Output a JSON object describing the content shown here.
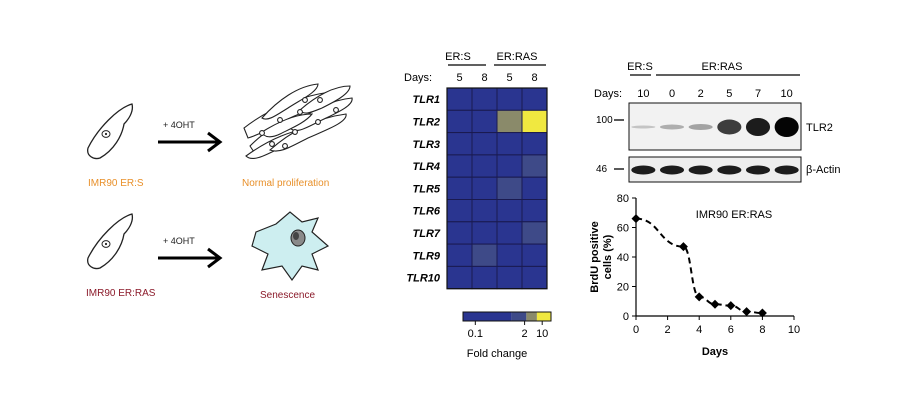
{
  "panel_a": {
    "arrow_label": "+ 4OHT",
    "cell_labels": [
      "IMR90 ER:S",
      "Normal proliferation",
      "IMR90 ER:RAS",
      "Senescence"
    ],
    "colors": {
      "ers_label": "#e8902a",
      "ras_label": "#8b1a2a",
      "senescent_fill": "#cdeef0"
    }
  },
  "heatmap": {
    "group_labels": [
      "ER:S",
      "ER:RAS"
    ],
    "days_label": "Days:",
    "days": [
      "5",
      "8",
      "5",
      "8"
    ],
    "genes": [
      "TLR1",
      "TLR2",
      "TLR3",
      "TLR4",
      "TLR5",
      "TLR6",
      "TLR7",
      "TLR9",
      "TLR10"
    ],
    "fold_change": [
      [
        0.1,
        0.1,
        0.1,
        0.1
      ],
      [
        0.1,
        0.1,
        2,
        10
      ],
      [
        0.1,
        0.1,
        0.1,
        0.1
      ],
      [
        0.1,
        0.1,
        0.1,
        0.5
      ],
      [
        0.1,
        0.1,
        0.5,
        0.1
      ],
      [
        0.1,
        0.1,
        0.1,
        0.1
      ],
      [
        0.1,
        0.1,
        0.1,
        0.5
      ],
      [
        0.1,
        0.5,
        0.1,
        0.1
      ],
      [
        0.1,
        0.1,
        0.1,
        0.1
      ]
    ],
    "scale_ticks": [
      "0.1",
      "2",
      "10"
    ],
    "scale_title": "Fold change",
    "colors": {
      "low": "#2a3590",
      "mid": "#8a8a6a",
      "high": "#f0e840",
      "grid": "#1a1a50"
    }
  },
  "western": {
    "group_labels": [
      "ER:S",
      "ER:RAS"
    ],
    "days_label": "Days:",
    "days": [
      "10",
      "0",
      "2",
      "5",
      "7",
      "10"
    ],
    "markers": [
      "100",
      "46"
    ],
    "bands": [
      {
        "label": "TLR2",
        "intensity": [
          0.15,
          0.25,
          0.3,
          0.75,
          0.9,
          1.0
        ]
      },
      {
        "label": "β-Actin",
        "intensity": [
          0.9,
          0.9,
          0.9,
          0.9,
          0.9,
          0.9
        ]
      }
    ]
  },
  "chart_data": {
    "type": "line",
    "title": "IMR90 ER:RAS",
    "xlabel": "Days",
    "ylabel": "BrdU positive cells (%)",
    "x": [
      0,
      3,
      4,
      5,
      6,
      7,
      8
    ],
    "y": [
      66,
      47,
      13,
      8,
      7,
      3,
      2
    ],
    "xlim": [
      0,
      10
    ],
    "ylim": [
      0,
      80
    ],
    "xticks": [
      "0",
      "2",
      "4",
      "6",
      "8",
      "10"
    ],
    "yticks": [
      "0",
      "20",
      "40",
      "60",
      "80"
    ],
    "grid": false
  }
}
